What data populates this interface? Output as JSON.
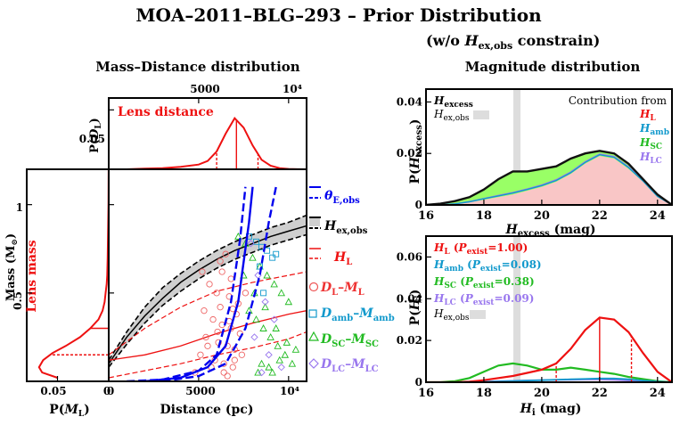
{
  "page": {
    "title": "MOA–2011–BLG–293 – Prior Distribution",
    "subtitle": "(w/o H_ex,obs constrain)"
  },
  "left_panel": {
    "heading": "Mass–Distance distribution",
    "lens_distance_label": "Lens distance",
    "lens_mass_label": "Lens mass",
    "top_ticks": [
      "5000",
      "10⁴"
    ],
    "pdl_label": "P(D_L)",
    "pdl_ticks": [
      "0.05",
      "0"
    ],
    "mass_label": "Mass (M⊙)",
    "mass_ticks": [
      "1",
      "0.5",
      "0"
    ],
    "pml_ticks": [
      "0.05",
      "0"
    ],
    "pml_label": "P(M_L)",
    "distance_ticks": [
      "0",
      "5000",
      "10⁴"
    ],
    "distance_label": "Distance (pc)",
    "legend": [
      {
        "name": "theta-e-obs",
        "label": "θ_E,obs",
        "color": "#0000ee"
      },
      {
        "name": "h-ex-obs",
        "label": "H_ex,obs",
        "color": "#000000"
      },
      {
        "name": "h-l",
        "label": "H_L",
        "color": "#ee1111"
      },
      {
        "name": "dl-ml",
        "label": "D_L–M_L",
        "color": "#ee3333"
      },
      {
        "name": "damb-mamb",
        "label": "D_amb–M_amb",
        "color": "#1199cc"
      },
      {
        "name": "dsc-msc",
        "label": "D_SC–M_SC",
        "color": "#22bb22"
      },
      {
        "name": "dlc-mlc",
        "label": "D_LC–M_LC",
        "color": "#9977ee"
      }
    ]
  },
  "right_panel": {
    "heading": "Magnitude distribution",
    "top_legend": {
      "hexcess": "H_excess",
      "hexobs": "H_ex,obs",
      "contribution": "Contribution from",
      "items": [
        {
          "label": "H_L",
          "color": "#ee1111"
        },
        {
          "label": "H_amb",
          "color": "#1199cc"
        },
        {
          "label": "H_SC",
          "color": "#22bb22"
        },
        {
          "label": "H_LC",
          "color": "#9977ee"
        }
      ]
    },
    "bottom_legend": [
      {
        "label": "H_L (P_exist=1.00)",
        "color": "#ee1111"
      },
      {
        "label": "H_amb (P_exist=0.08)",
        "color": "#1199cc"
      },
      {
        "label": "H_SC (P_exist=0.38)",
        "color": "#22bb22"
      },
      {
        "label": "H_LC (P_exist=0.09)",
        "color": "#9977ee"
      },
      {
        "label": "H_ex,obs",
        "color": "#000000"
      }
    ]
  },
  "chart_data": [
    {
      "id": "p-dl",
      "type": "line",
      "title": "Lens distance",
      "xlabel": "Distance (pc)",
      "ylabel": "P(D_L)",
      "xlim": [
        0,
        11000
      ],
      "ylim": [
        0,
        0.06
      ],
      "x": [
        0,
        1000,
        2000,
        3000,
        4000,
        5000,
        5500,
        6000,
        6500,
        7000,
        7500,
        8000,
        8500,
        9000,
        9500,
        10000,
        10500,
        11000
      ],
      "y": [
        0.0,
        0.0,
        0.0005,
        0.001,
        0.002,
        0.004,
        0.007,
        0.015,
        0.03,
        0.043,
        0.035,
        0.02,
        0.008,
        0.003,
        0.001,
        0.0003,
        0.0001,
        0.0
      ],
      "markers": {
        "median": 7100,
        "lower": 6000,
        "upper": 8300
      }
    },
    {
      "id": "p-ml",
      "type": "line",
      "title": "Lens mass",
      "xlabel": "P(M_L)",
      "ylabel": "Mass (M⊙)",
      "xlim": [
        0,
        0.08
      ],
      "ylim": [
        0,
        1.2
      ],
      "mass": [
        0.02,
        0.05,
        0.08,
        0.12,
        0.16,
        0.2,
        0.25,
        0.3,
        0.35,
        0.4,
        0.45,
        0.5,
        0.55,
        0.6,
        0.7,
        0.8,
        0.9,
        1.0,
        1.1,
        1.2
      ],
      "p": [
        0.05,
        0.065,
        0.068,
        0.064,
        0.055,
        0.042,
        0.028,
        0.018,
        0.01,
        0.006,
        0.004,
        0.003,
        0.002,
        0.0015,
        0.001,
        0.0008,
        0.0005,
        0.0003,
        0.0002,
        0.0001
      ],
      "markers": {
        "median": 0.3,
        "lower": 0.15,
        "upper": 0.59
      }
    },
    {
      "id": "mass-distance",
      "type": "scatter",
      "xlabel": "Distance (pc)",
      "ylabel": "Mass (M⊙)",
      "xlim": [
        0,
        11000
      ],
      "ylim": [
        0,
        1.2
      ],
      "curves": {
        "theta_e": {
          "x": [
            2000,
            4000,
            5500,
            6500,
            7200,
            7800,
            8000
          ],
          "y": [
            0.0,
            0.02,
            0.08,
            0.2,
            0.45,
            0.9,
            1.1
          ]
        },
        "theta_e_lo": {
          "x": [
            1000,
            3000,
            5000,
            6000,
            6800,
            7300,
            7600
          ],
          "y": [
            0.0,
            0.01,
            0.06,
            0.15,
            0.45,
            0.8,
            1.1
          ]
        },
        "theta_e_hi": {
          "x": [
            3000,
            5000,
            6500,
            7600,
            8400,
            8900,
            9300
          ],
          "y": [
            0.0,
            0.03,
            0.1,
            0.3,
            0.6,
            0.9,
            1.1
          ]
        },
        "hex": {
          "x": [
            0,
            1000,
            2000,
            3000,
            4000,
            5000,
            6000,
            7000,
            8000,
            9000,
            10000,
            11000
          ],
          "y": [
            0.1,
            0.25,
            0.37,
            0.47,
            0.56,
            0.63,
            0.69,
            0.74,
            0.78,
            0.82,
            0.85,
            0.88
          ]
        },
        "hex_hi": {
          "x": [
            0,
            1000,
            2000,
            3000,
            4000,
            5000,
            6000,
            7000,
            8000,
            9000,
            10000,
            11000
          ],
          "y": [
            0.12,
            0.28,
            0.42,
            0.53,
            0.61,
            0.68,
            0.74,
            0.79,
            0.83,
            0.87,
            0.9,
            0.94
          ]
        },
        "hex_lo": {
          "x": [
            0,
            1000,
            2000,
            3000,
            4000,
            5000,
            6000,
            7000,
            8000,
            9000,
            10000,
            11000
          ],
          "y": [
            0.08,
            0.21,
            0.33,
            0.43,
            0.51,
            0.58,
            0.64,
            0.69,
            0.73,
            0.77,
            0.8,
            0.83
          ]
        },
        "hl": {
          "x": [
            0,
            2000,
            4000,
            6000,
            8000,
            10000,
            11000
          ],
          "y": [
            0.12,
            0.15,
            0.2,
            0.27,
            0.33,
            0.38,
            0.4
          ]
        },
        "hl_hi": {
          "x": [
            0,
            2000,
            4000,
            6000,
            8000,
            10000,
            11000
          ],
          "y": [
            0.15,
            0.3,
            0.42,
            0.51,
            0.56,
            0.6,
            0.62
          ]
        },
        "hl_lo": {
          "x": [
            0,
            2000,
            4000,
            6000,
            8000,
            10000,
            11000
          ],
          "y": [
            0.02,
            0.06,
            0.1,
            0.15,
            0.19,
            0.24,
            0.28
          ]
        }
      },
      "points": {
        "dl_ml": {
          "x": [
            5200,
            5600,
            6000,
            6200,
            6500,
            6700,
            6900,
            7100,
            5800,
            6300,
            6800,
            7300,
            5400,
            6100,
            6600,
            7000,
            7400,
            5900,
            6400,
            6900,
            4800,
            5100,
            5500,
            6050,
            6700,
            7200,
            5300,
            6200,
            6800,
            7600,
            6400,
            5700,
            6600,
            7000,
            6300
          ],
          "y": [
            0.62,
            0.55,
            0.5,
            0.68,
            0.72,
            0.48,
            0.41,
            0.38,
            0.35,
            0.32,
            0.3,
            0.27,
            0.25,
            0.22,
            0.2,
            0.18,
            0.15,
            0.12,
            0.1,
            0.08,
            0.05,
            0.15,
            0.2,
            0.28,
            0.34,
            0.44,
            0.4,
            0.42,
            0.58,
            0.5,
            0.05,
            0.08,
            0.03,
            0.12,
            0.62
          ]
        },
        "damb_mamb": {
          "x": [
            7800,
            8200,
            8500,
            8800,
            9100,
            8600,
            9300,
            8400
          ],
          "y": [
            0.82,
            0.79,
            0.76,
            0.74,
            0.7,
            0.5,
            0.72,
            0.65
          ]
        },
        "dsc_msc": {
          "x": [
            7200,
            7600,
            8000,
            8400,
            8800,
            9200,
            9600,
            10000,
            7800,
            8200,
            8600,
            9000,
            9400,
            9800,
            10200,
            8300,
            8900,
            9500,
            7500,
            8100,
            8700,
            9300,
            9900,
            10400,
            8500,
            9100
          ],
          "y": [
            0.82,
            0.78,
            0.7,
            0.65,
            0.6,
            0.55,
            0.5,
            0.45,
            0.4,
            0.35,
            0.3,
            0.25,
            0.2,
            0.15,
            0.1,
            0.05,
            0.08,
            0.12,
            0.6,
            0.5,
            0.42,
            0.3,
            0.22,
            0.18,
            0.1,
            0.05
          ]
        },
        "dlc_mlc": {
          "x": [
            7900,
            8300,
            8700,
            9200,
            8100,
            8900,
            9600,
            8500
          ],
          "y": [
            0.78,
            0.6,
            0.45,
            0.35,
            0.25,
            0.15,
            0.08,
            0.05
          ]
        }
      }
    },
    {
      "id": "p-hexcess",
      "type": "area",
      "xlabel": "H_excess (mag)",
      "ylabel": "P(H_excess)",
      "xlim": [
        16,
        24.5
      ],
      "ylim": [
        0,
        0.045
      ],
      "highlight_band": [
        19.0,
        19.2
      ],
      "x": [
        16,
        16.5,
        17,
        17.5,
        18,
        18.5,
        19,
        19.5,
        20,
        20.5,
        21,
        21.5,
        22,
        22.5,
        23,
        23.5,
        24,
        24.5
      ],
      "total": [
        0.0,
        0.0005,
        0.0015,
        0.003,
        0.006,
        0.01,
        0.013,
        0.013,
        0.014,
        0.015,
        0.018,
        0.02,
        0.021,
        0.02,
        0.016,
        0.01,
        0.004,
        0.0
      ],
      "hl": [
        0.0,
        0.0,
        0.0003,
        0.001,
        0.002,
        0.003,
        0.004,
        0.0055,
        0.007,
        0.009,
        0.012,
        0.016,
        0.019,
        0.018,
        0.014,
        0.009,
        0.003,
        0.0
      ],
      "hamb": [
        0.0,
        0.0,
        0.0004,
        0.0012,
        0.0024,
        0.0035,
        0.0046,
        0.006,
        0.0075,
        0.0095,
        0.0125,
        0.0165,
        0.0195,
        0.0185,
        0.0145,
        0.0093,
        0.0033,
        0.0
      ],
      "hlc": [
        0.0,
        0.0,
        0.0004,
        0.0013,
        0.0025,
        0.0037,
        0.0048,
        0.0062,
        0.0078,
        0.0098,
        0.0128,
        0.0168,
        0.0198,
        0.0188,
        0.0148,
        0.0095,
        0.0035,
        0.0
      ]
    },
    {
      "id": "p-hi",
      "type": "line",
      "xlabel": "H_i (mag)",
      "ylabel": "P(H_i)",
      "xlim": [
        16,
        24.5
      ],
      "ylim": [
        0,
        0.07
      ],
      "highlight_band": [
        19.0,
        19.2
      ],
      "x": [
        16,
        16.5,
        17,
        17.5,
        18,
        18.5,
        19,
        19.5,
        20,
        20.5,
        21,
        21.5,
        22,
        22.5,
        23,
        23.5,
        24,
        24.5
      ],
      "series": [
        {
          "name": "H_L",
          "color": "#ee1111",
          "values": [
            0.0,
            0.0,
            0.0,
            0.0003,
            0.001,
            0.002,
            0.003,
            0.0045,
            0.006,
            0.009,
            0.016,
            0.025,
            0.031,
            0.03,
            0.024,
            0.014,
            0.005,
            0.0
          ]
        },
        {
          "name": "H_amb",
          "color": "#1199cc",
          "values": [
            0.0,
            0.0,
            0.0,
            0.0,
            0.0002,
            0.0004,
            0.0006,
            0.0008,
            0.001,
            0.0012,
            0.0014,
            0.0016,
            0.0018,
            0.0018,
            0.0014,
            0.0008,
            0.0003,
            0.0
          ]
        },
        {
          "name": "H_SC",
          "color": "#22bb22",
          "values": [
            0.0,
            0.0,
            0.0005,
            0.002,
            0.005,
            0.008,
            0.009,
            0.008,
            0.006,
            0.006,
            0.007,
            0.006,
            0.005,
            0.004,
            0.0025,
            0.0015,
            0.0005,
            0.0
          ]
        },
        {
          "name": "H_LC",
          "color": "#9977ee",
          "values": [
            0.0,
            0.0,
            0.0,
            0.0001,
            0.0003,
            0.0005,
            0.0007,
            0.0009,
            0.001,
            0.0011,
            0.0012,
            0.0013,
            0.0013,
            0.0011,
            0.0008,
            0.0005,
            0.0002,
            0.0
          ]
        }
      ],
      "markers": {
        "median": 22.0,
        "lower": 20.5,
        "upper": 23.1
      }
    }
  ]
}
